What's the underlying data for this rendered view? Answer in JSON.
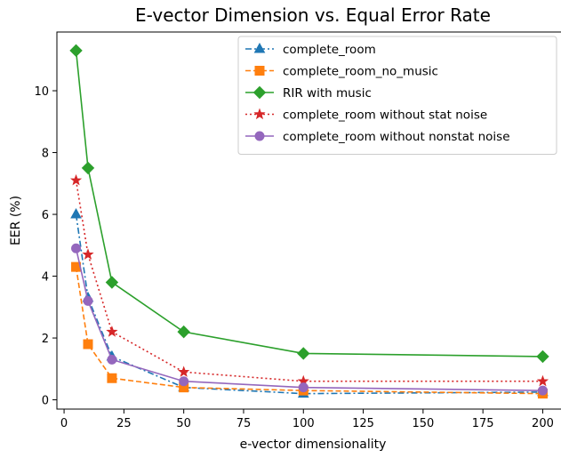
{
  "chart_data": {
    "type": "line",
    "title": "E-vector Dimension vs. Equal Error Rate",
    "xlabel": "e-vector dimensionality",
    "ylabel": "EER (%)",
    "xlim": [
      -3,
      208
    ],
    "ylim": [
      -0.3,
      11.9
    ],
    "xticks": [
      0,
      25,
      50,
      75,
      100,
      125,
      150,
      175,
      200
    ],
    "yticks": [
      0,
      2,
      4,
      6,
      8,
      10
    ],
    "grid": false,
    "legend_position": "top-right",
    "x": [
      5,
      10,
      20,
      50,
      100,
      200
    ],
    "series": [
      {
        "name": "complete_room",
        "values": [
          6.0,
          3.3,
          1.4,
          0.4,
          0.2,
          0.25
        ],
        "color": "#1f77b4",
        "linestyle": "dashdot",
        "marker": "triangle"
      },
      {
        "name": "complete_room_no_music",
        "values": [
          4.3,
          1.8,
          0.7,
          0.4,
          0.3,
          0.2
        ],
        "color": "#ff7f0e",
        "linestyle": "dashed",
        "marker": "square"
      },
      {
        "name": "RIR with music",
        "values": [
          11.3,
          7.5,
          3.8,
          2.2,
          1.5,
          1.4
        ],
        "color": "#2ca02c",
        "linestyle": "solid",
        "marker": "diamond"
      },
      {
        "name": "complete_room without stat noise",
        "values": [
          7.1,
          4.7,
          2.2,
          0.9,
          0.6,
          0.6
        ],
        "color": "#d62728",
        "linestyle": "dotted",
        "marker": "star"
      },
      {
        "name": "complete_room without nonstat noise",
        "values": [
          4.9,
          3.2,
          1.3,
          0.6,
          0.4,
          0.3
        ],
        "color": "#9467bd",
        "linestyle": "solid",
        "marker": "circle"
      }
    ]
  }
}
